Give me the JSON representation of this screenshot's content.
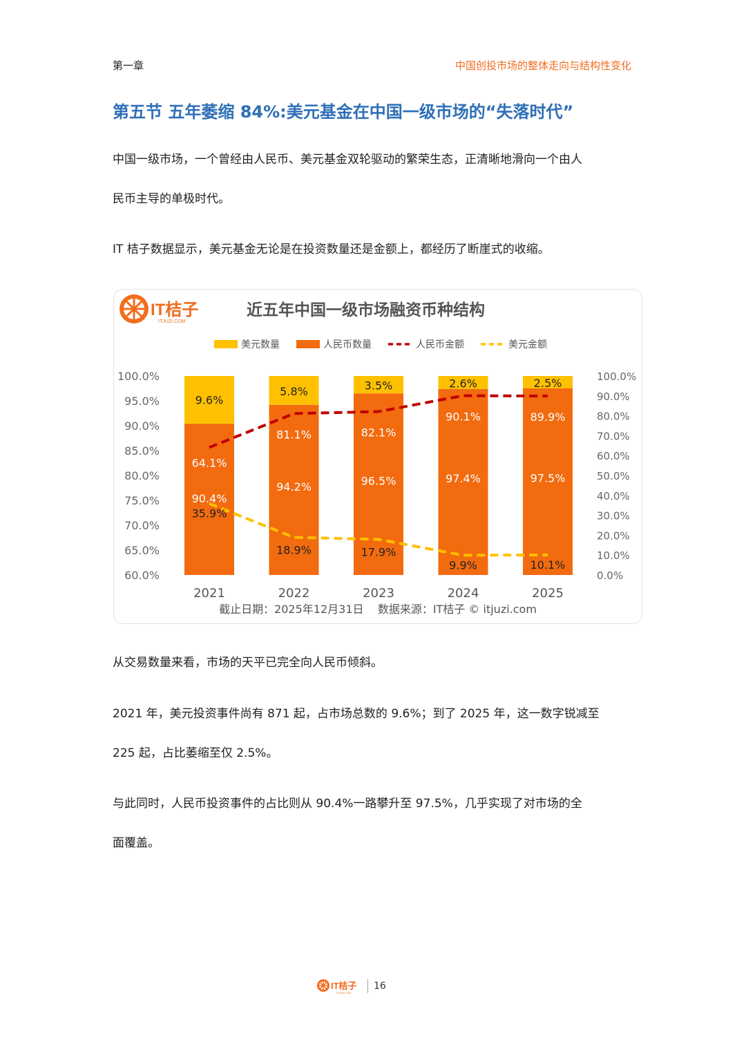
{
  "header": {
    "chapter": "第一章",
    "chapter_title": "中国创投市场的整体走向与结构性变化"
  },
  "section_title": "第五节  五年萎缩 84%:美元基金在中国一级市场的“失落时代”",
  "paragraphs_top": [
    "中国一级市场，一个曾经由人民币、美元基金双轮驱动的繁荣生态，正清晰地滑向一个由人",
    "民币主导的单极时代。",
    "IT 桔子数据显示，美元基金无论是在投资数量还是金额上，都经历了断崖式的收缩。"
  ],
  "chart_logo": {
    "brand": "IT桔子",
    "domain": "ITJUZI.COM"
  },
  "chart_data": {
    "type": "bar",
    "title": "近五年中国一级市场融资币种结构",
    "categories": [
      "2021",
      "2022",
      "2023",
      "2024",
      "2025"
    ],
    "legend": [
      "美元数量",
      "人民币数量",
      "人民币金额",
      "美元金额"
    ],
    "legend_placement": "top",
    "series": [
      {
        "name": "美元数量",
        "kind": "stacked-bar",
        "axis": "left",
        "color": "#ffc000",
        "values": [
          9.6,
          5.8,
          3.5,
          2.6,
          2.5
        ],
        "labels": [
          "9.6%",
          "5.8%",
          "3.5%",
          "2.6%",
          "2.5%"
        ]
      },
      {
        "name": "人民币数量",
        "kind": "stacked-bar",
        "axis": "left",
        "color": "#f26b0f",
        "values": [
          90.4,
          94.2,
          96.5,
          97.4,
          97.5
        ],
        "labels": [
          "90.4%",
          "94.2%",
          "96.5%",
          "97.4%",
          "97.5%"
        ]
      },
      {
        "name": "人民币金额",
        "kind": "line",
        "style": "dashed",
        "axis": "right",
        "color": "#c00000",
        "values": [
          64.1,
          81.1,
          82.1,
          90.1,
          89.9
        ],
        "labels": [
          "64.1%",
          "81.1%",
          "82.1%",
          "90.1%",
          "89.9%"
        ]
      },
      {
        "name": "美元金额",
        "kind": "line",
        "style": "dashed",
        "axis": "right",
        "color": "#ffc000",
        "values": [
          35.9,
          18.9,
          17.9,
          9.9,
          10.1
        ],
        "labels": [
          "35.9%",
          "18.9%",
          "17.9%",
          "9.9%",
          "10.1%"
        ]
      }
    ],
    "y_left": {
      "min": 60,
      "max": 100,
      "ticks": [
        "100.0%",
        "95.0%",
        "90.0%",
        "85.0%",
        "80.0%",
        "75.0%",
        "70.0%",
        "65.0%",
        "60.0%"
      ]
    },
    "y_right": {
      "min": 0,
      "max": 100,
      "ticks": [
        "100.0%",
        "90.0%",
        "80.0%",
        "70.0%",
        "60.0%",
        "50.0%",
        "40.0%",
        "30.0%",
        "20.0%",
        "10.0%",
        "0.0%"
      ]
    },
    "grid": false,
    "footnote": "截止日期：2025年12月31日    数据来源：IT桔子 © itjuzi.com"
  },
  "paragraphs_bottom": [
    "从交易数量来看，市场的天平已完全向人民币倾斜。",
    "2021 年，美元投资事件尚有 871 起，占市场总数的 9.6%；到了 2025 年，这一数字锐减至",
    "225 起，占比萎缩至仅 2.5%。",
    "与此同时，人民币投资事件的占比则从 90.4%一路攀升至 97.5%，几乎实现了对市场的全",
    "面覆盖。"
  ],
  "footer": {
    "brand": "IT桔子",
    "domain": "ITJUZI.COM",
    "page_number": "16"
  }
}
